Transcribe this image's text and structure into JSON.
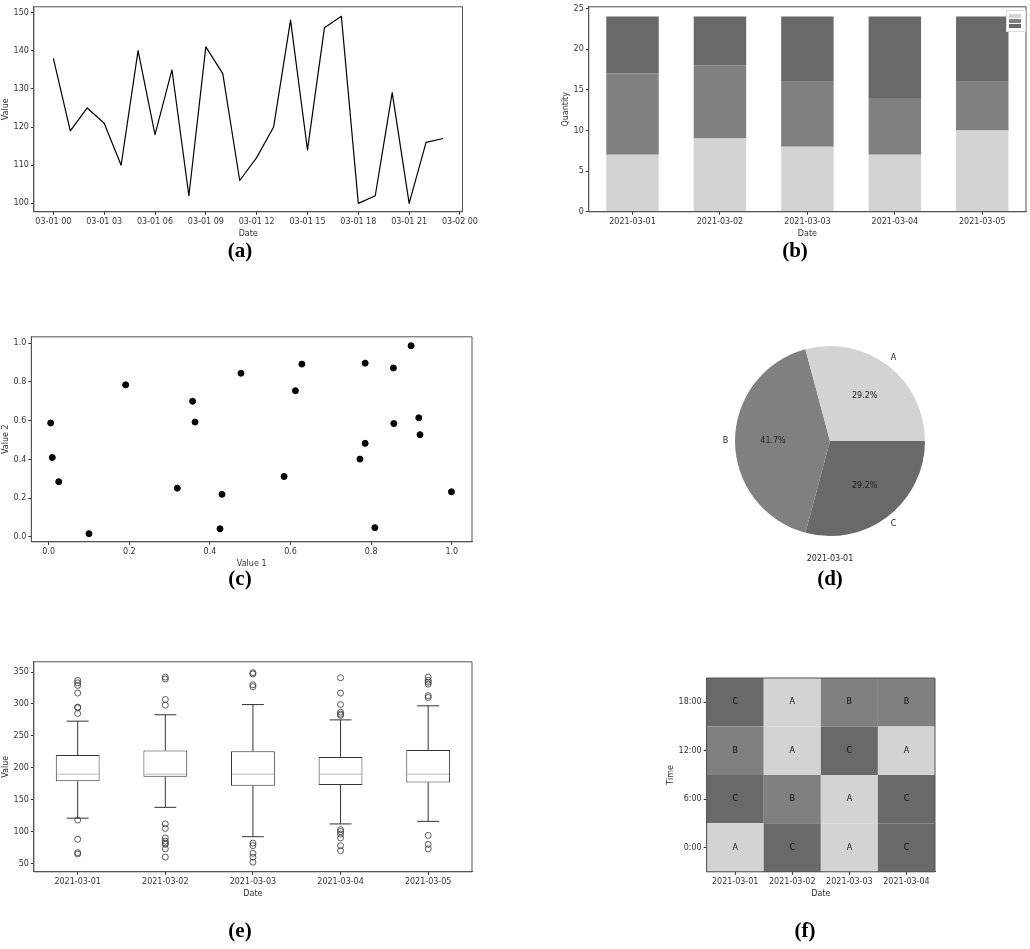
{
  "chart_data": [
    {
      "type": "line",
      "x": [
        "--03-01T00:00",
        "--03-01T01:00",
        "--03-01T02:00",
        "--03-01T03:00",
        "--03-01T04:00",
        "--03-01T05:00",
        "--03-01T06:00",
        "--03-01T07:00",
        "--03-01T08:00",
        "--03-01T09:00",
        "--03-01T10:00",
        "--03-01T11:00",
        "--03-01T12:00",
        "--03-01T13:00",
        "--03-01T14:00",
        "--03-01T15:00",
        "--03-01T16:00",
        "--03-01T17:00",
        "--03-01T18:00",
        "--03-01T19:00",
        "--03-01T20:00",
        "--03-01T21:00",
        "--03-01T22:00",
        "--03-01T23:00"
      ],
      "values": [
        138,
        119,
        125,
        121,
        110,
        140,
        118,
        135,
        102,
        141,
        134,
        106,
        112,
        120,
        148,
        114,
        146,
        149,
        100,
        102,
        129,
        100,
        116,
        117
      ],
      "color": "#000000",
      "xlim": [
        "--02-28T22:51",
        "--03-02T00:09"
      ],
      "xticks": [
        {
          "value": "--03-01T00:00",
          "label": "03-01 00"
        },
        {
          "value": "--03-01T03:00",
          "label": "03-01 03"
        },
        {
          "value": "--03-01T06:00",
          "label": "03-01 06"
        },
        {
          "value": "--03-01T09:00",
          "label": "03-01 09"
        },
        {
          "value": "--03-01T12:00",
          "label": "03-01 12"
        },
        {
          "value": "--03-01T15:00",
          "label": "03-01 15"
        },
        {
          "value": "--03-01T18:00",
          "label": "03-01 18"
        },
        {
          "value": "--03-01T21:00",
          "label": "03-01 21"
        },
        {
          "value": "--03-02T00:00",
          "label": "03-02 00"
        }
      ],
      "ylim": [
        97.8,
        151.5
      ],
      "yticks": [
        100,
        110,
        120,
        130,
        140,
        150
      ],
      "xlabel": "Date",
      "ylabel": "Value",
      "marker": "none",
      "line_style": "solid",
      "annotations": [
        "(a)"
      ]
    },
    {
      "type": "bar",
      "stacked": true,
      "categories": [
        "2021-03-01",
        "2021-03-02",
        "2021-03-03",
        "2021-03-04",
        "2021-03-05"
      ],
      "series": [
        {
          "color": "#d3d3d3",
          "values": [
            7,
            9,
            8,
            7,
            10
          ]
        },
        {
          "color": "#808080",
          "values": [
            10,
            9,
            8,
            7,
            6
          ]
        },
        {
          "color": "#696969",
          "values": [
            7,
            6,
            8,
            10,
            8
          ]
        }
      ],
      "ylim": [
        0,
        25.2
      ],
      "yticks": [
        0,
        5,
        10,
        15,
        20,
        25
      ],
      "xlabel": "Date",
      "ylabel": "Quantity",
      "annotations": [
        "(b)"
      ]
    },
    {
      "type": "scatter",
      "x": [
        0.005,
        0.009,
        0.025,
        0.1,
        0.191,
        0.319,
        0.357,
        0.363,
        0.425,
        0.43,
        0.477,
        0.584,
        0.612,
        0.628,
        0.772,
        0.785,
        0.785,
        0.809,
        0.855,
        0.856,
        0.899,
        0.918,
        0.921,
        0.999
      ],
      "values": [
        0.588,
        0.41,
        0.285,
        0.017,
        0.785,
        0.252,
        0.7,
        0.593,
        0.042,
        0.22,
        0.845,
        0.312,
        0.755,
        0.892,
        0.402,
        0.483,
        0.897,
        0.048,
        0.872,
        0.585,
        0.987,
        0.615,
        0.528,
        0.233
      ],
      "color": "#000000",
      "marker": "circle",
      "xlim": [
        -0.043,
        1.05
      ],
      "xticks": [
        {
          "value": 0,
          "label": "0.0"
        },
        {
          "value": 0.2,
          "label": "0.2"
        },
        {
          "value": 0.4,
          "label": "0.4"
        },
        {
          "value": 0.6,
          "label": "0.6"
        },
        {
          "value": 0.8,
          "label": "0.8"
        },
        {
          "value": 1,
          "label": "1.0"
        }
      ],
      "ylim": [
        -0.025,
        1.033
      ],
      "yticks": [
        {
          "value": 0,
          "label": "0.0"
        },
        {
          "value": 0.2,
          "label": "0.2"
        },
        {
          "value": 0.4,
          "label": "0.4"
        },
        {
          "value": 0.6,
          "label": "0.6"
        },
        {
          "value": 0.8,
          "label": "0.8"
        },
        {
          "value": 1,
          "label": "1.0"
        }
      ],
      "xlabel": "Value 1",
      "ylabel": "Value 2",
      "annotations": [
        "(c)"
      ]
    },
    {
      "type": "pie",
      "categories": [
        "A",
        "B",
        "C"
      ],
      "values": [
        29.2,
        41.7,
        29.2
      ],
      "colors": [
        "#d3d3d3",
        "#808080",
        "#696969"
      ],
      "value_labels": [
        "29.2%",
        "41.7%",
        "29.2%"
      ],
      "xlabel": "2021-03-01",
      "annotations": [
        "(d)"
      ]
    },
    {
      "type": "box",
      "categories": [
        "2021-03-01",
        "2021-03-02",
        "2021-03-03",
        "2021-03-04",
        "2021-03-05"
      ],
      "color": "#333333",
      "boxes": [
        {
          "low": 121,
          "q1": 179,
          "median": 190,
          "q3": 220,
          "high": 273,
          "outliers": [
            285,
            294,
            295,
            317,
            329,
            333,
            337,
            118,
            88,
            67,
            65
          ]
        },
        {
          "low": 138,
          "q1": 186,
          "median": 190,
          "q3": 227,
          "high": 283,
          "outliers": [
            298,
            307,
            339,
            342,
            112,
            105,
            90,
            85,
            82,
            80,
            73,
            60
          ]
        },
        {
          "low": 92,
          "q1": 172,
          "median": 190,
          "q3": 226,
          "high": 299,
          "outliers": [
            327,
            330,
            347,
            349,
            82,
            78,
            66,
            60,
            52
          ]
        },
        {
          "low": 112,
          "q1": 173,
          "median": 190,
          "q3": 217,
          "high": 275,
          "outliers": [
            282,
            284,
            287,
            299,
            317,
            341,
            103,
            100,
            96,
            90,
            78,
            70
          ]
        },
        {
          "low": 116,
          "q1": 177,
          "median": 190,
          "q3": 228,
          "high": 297,
          "outliers": [
            310,
            313,
            331,
            334,
            337,
            342,
            94,
            80,
            73
          ]
        }
      ],
      "ylim": [
        37,
        366
      ],
      "yticks": [
        50,
        100,
        150,
        200,
        250,
        300,
        350
      ],
      "xlabel": "Date",
      "ylabel": "Value",
      "annotations": [
        "(e)"
      ]
    },
    {
      "type": "heatmap",
      "categories": [
        "2021-03-01",
        "2021-03-02",
        "2021-03-03",
        "2021-03-04"
      ],
      "y_categories": [
        "18:00",
        "12:00",
        "6:00",
        "0:00"
      ],
      "cells": [
        [
          "C",
          "A",
          "B",
          "B"
        ],
        [
          "B",
          "A",
          "C",
          "A"
        ],
        [
          "C",
          "B",
          "A",
          "C"
        ],
        [
          "A",
          "C",
          "A",
          "C"
        ]
      ],
      "colors": [
        "#d3d3d3",
        "#808080",
        "#696969"
      ],
      "xlabel": "Date",
      "ylabel": "Time",
      "annotations": [
        "(f)"
      ]
    }
  ]
}
